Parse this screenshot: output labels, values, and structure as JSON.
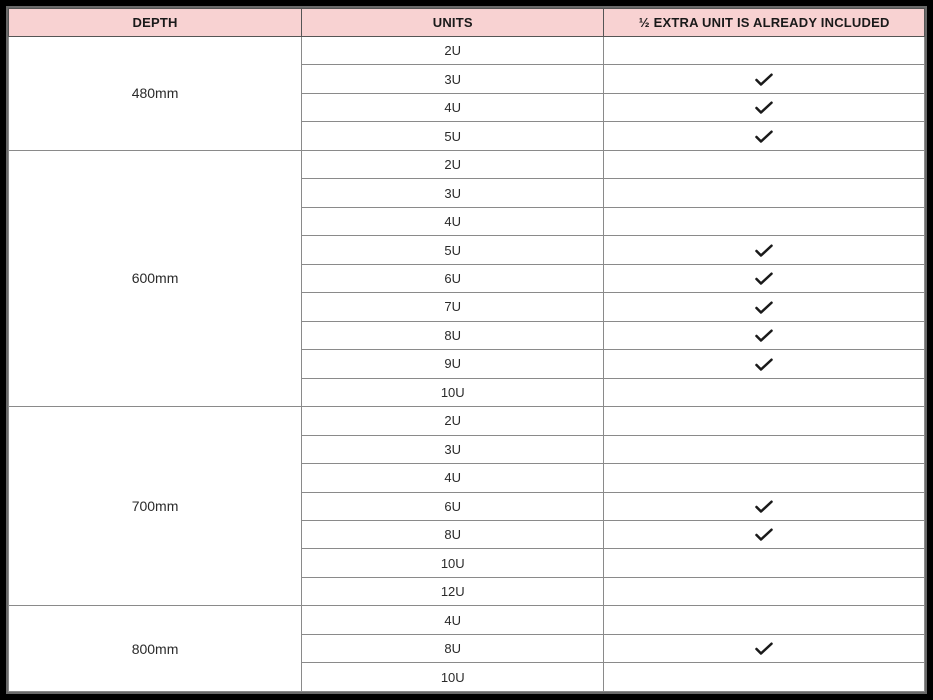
{
  "table": {
    "header_bg": "#f8d2d2",
    "border_color": "#8a8a8a",
    "outer_border": "#000000",
    "columns": [
      {
        "label": "DEPTH",
        "width": "32%"
      },
      {
        "label": "UNITS",
        "width": "33%"
      },
      {
        "label": "½ EXTRA UNIT IS ALREADY INCLUDED",
        "width": "35%"
      }
    ],
    "groups": [
      {
        "depth": "480mm",
        "rows": [
          {
            "units": "2U",
            "check": false
          },
          {
            "units": "3U",
            "check": true
          },
          {
            "units": "4U",
            "check": true
          },
          {
            "units": "5U",
            "check": true
          }
        ]
      },
      {
        "depth": "600mm",
        "rows": [
          {
            "units": "2U",
            "check": false
          },
          {
            "units": "3U",
            "check": false
          },
          {
            "units": "4U",
            "check": false
          },
          {
            "units": "5U",
            "check": true
          },
          {
            "units": "6U",
            "check": true
          },
          {
            "units": "7U",
            "check": true
          },
          {
            "units": "8U",
            "check": true
          },
          {
            "units": "9U",
            "check": true
          },
          {
            "units": "10U",
            "check": false
          }
        ]
      },
      {
        "depth": "700mm",
        "rows": [
          {
            "units": "2U",
            "check": false
          },
          {
            "units": "3U",
            "check": false
          },
          {
            "units": "4U",
            "check": false
          },
          {
            "units": "6U",
            "check": true
          },
          {
            "units": "8U",
            "check": true
          },
          {
            "units": "10U",
            "check": false
          },
          {
            "units": "12U",
            "check": false
          }
        ]
      },
      {
        "depth": "800mm",
        "rows": [
          {
            "units": "4U",
            "check": false
          },
          {
            "units": "8U",
            "check": true
          },
          {
            "units": "10U",
            "check": false
          }
        ]
      }
    ],
    "check_icon_color": "#1a1a1a",
    "fontsize_header": 13,
    "fontsize_cell": 13
  }
}
